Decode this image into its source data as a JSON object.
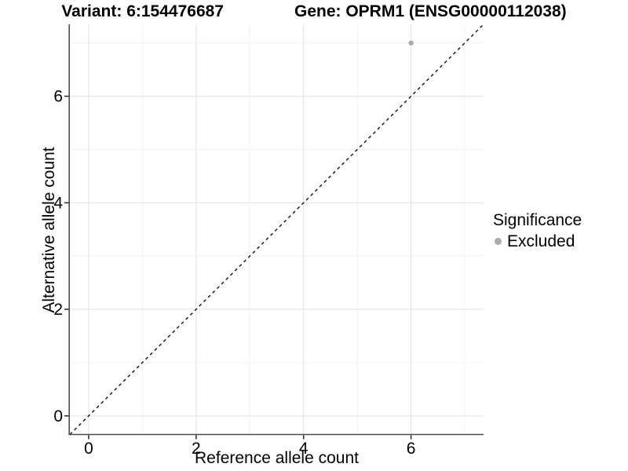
{
  "chart_data": {
    "type": "scatter",
    "title_left": "Variant: 6:154476687",
    "title_right": "Gene: OPRM1 (ENSG00000112038)",
    "xlabel": "Reference allele count",
    "ylabel": "Alternative allele count",
    "xlim": [
      -0.35,
      7.35
    ],
    "ylim": [
      -0.35,
      7.35
    ],
    "xticks": [
      0,
      2,
      4,
      6
    ],
    "yticks": [
      0,
      2,
      4,
      6
    ],
    "minor_xticks": [
      1,
      3,
      5,
      7
    ],
    "minor_yticks": [
      1,
      3,
      5,
      7
    ],
    "grid": "major+minor",
    "identity_line": {
      "style": "dashed",
      "color": "#111111",
      "dash": "4 4",
      "width": 1.4
    },
    "series": [
      {
        "name": "Excluded",
        "color": "#aaaaaa",
        "point_radius": 3.2,
        "points": [
          {
            "x": 6,
            "y": 7
          }
        ]
      }
    ],
    "legend": {
      "title": "Significance",
      "position": "right",
      "items": [
        {
          "label": "Excluded",
          "color": "#aaaaaa"
        }
      ]
    },
    "colors": {
      "background": "#ffffff",
      "grid_major": "#e4e4e4",
      "grid_minor": "#f1f1f1",
      "axis_line": "#4d4d4d",
      "tick_mark": "#333333",
      "text": "#000000"
    }
  }
}
